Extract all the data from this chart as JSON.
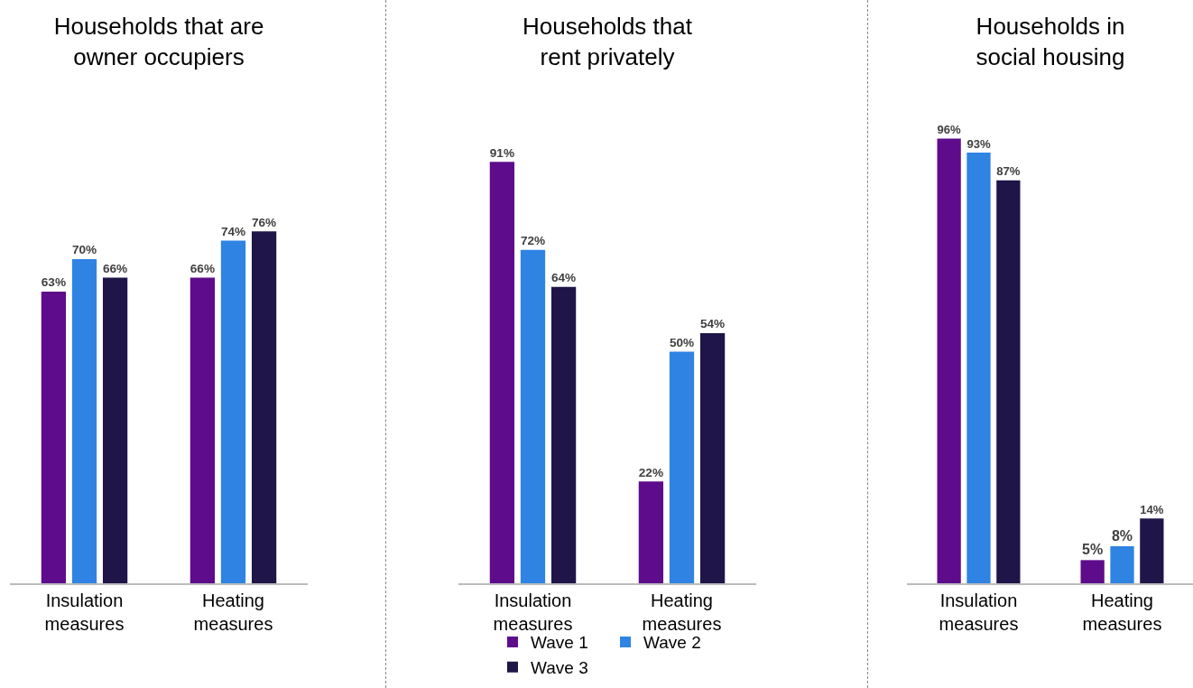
{
  "chart_data": [
    {
      "type": "bar",
      "title": "Households that are\nowner occupiers",
      "categories": [
        "Insulation\nmeasures",
        "Heating\nmeasures"
      ],
      "series": [
        {
          "color": "#5e0c8b",
          "values": [
            63,
            66
          ],
          "value_labels": [
            "63%",
            "66%"
          ]
        },
        {
          "color": "#2f83e3",
          "values": [
            70,
            74
          ],
          "value_labels": [
            "70%",
            "74%"
          ]
        },
        {
          "color": "#1f1548",
          "values": [
            66,
            76
          ],
          "value_labels": [
            "66%",
            "76%"
          ]
        }
      ]
    },
    {
      "type": "bar",
      "title": "Households that\nrent privately",
      "categories": [
        "Insulation\nmeasures",
        "Heating\nmeasures"
      ],
      "legend": "bottom",
      "series": [
        {
          "name": "Wave 1",
          "color": "#5e0c8b",
          "values": [
            91,
            22
          ],
          "value_labels": [
            "91%",
            "22%"
          ]
        },
        {
          "name": "Wave 2",
          "color": "#2f83e3",
          "values": [
            72,
            50
          ],
          "value_labels": [
            "72%",
            "50%"
          ]
        },
        {
          "name": "Wave 3",
          "color": "#1f1548",
          "values": [
            64,
            54
          ],
          "value_labels": [
            "64%",
            "54%"
          ]
        }
      ]
    },
    {
      "type": "bar",
      "title": "Households in\nsocial housing",
      "categories": [
        "Insulation\nmeasures",
        "Heating\nmeasures"
      ],
      "series": [
        {
          "color": "#5e0c8b",
          "values": [
            96,
            5
          ],
          "value_labels": [
            "96%",
            "5%"
          ]
        },
        {
          "color": "#2f83e3",
          "values": [
            93,
            8
          ],
          "value_labels": [
            "93%",
            "8%"
          ]
        },
        {
          "color": "#1f1548",
          "values": [
            87,
            14
          ],
          "value_labels": [
            "87%",
            "14%"
          ]
        }
      ]
    }
  ]
}
